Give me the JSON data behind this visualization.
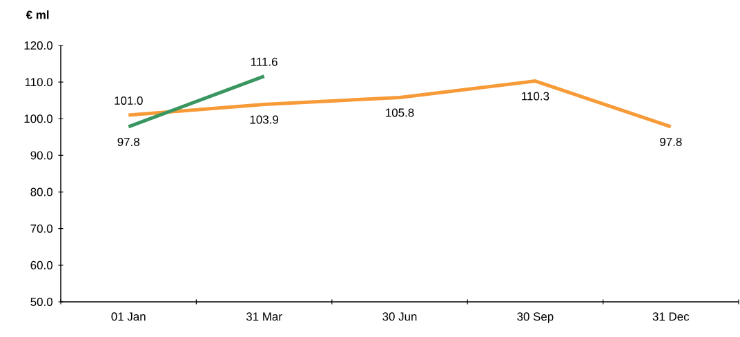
{
  "chart_data": {
    "type": "line",
    "ylabel": "€ ml",
    "categories": [
      "01 Jan",
      "31 Mar",
      "30 Jun",
      "30 Sep",
      "31 Dec"
    ],
    "series": [
      {
        "color": "#f79a38",
        "values": [
          101.0,
          103.9,
          105.8,
          110.3,
          97.8
        ],
        "value_labels": [
          "101.0",
          "103.9",
          "105.8",
          "110.3",
          "97.8"
        ]
      },
      {
        "color": "#3a9660",
        "values": [
          97.8,
          111.6,
          null,
          null,
          null
        ],
        "value_labels": [
          "97.8",
          "111.6",
          null,
          null,
          null
        ]
      }
    ],
    "ylim": [
      50,
      120
    ],
    "yticks": [
      {
        "value": 50,
        "label": "50.0"
      },
      {
        "value": 60,
        "label": "60.0"
      },
      {
        "value": 70,
        "label": "70.0"
      },
      {
        "value": 80,
        "label": "80.0"
      },
      {
        "value": 90,
        "label": "90.0"
      },
      {
        "value": 100,
        "label": "100.0"
      },
      {
        "value": 110,
        "label": "110.0"
      },
      {
        "value": 120,
        "label": "120.0"
      }
    ],
    "grid": false,
    "marker": "none",
    "line_style": "solid"
  }
}
